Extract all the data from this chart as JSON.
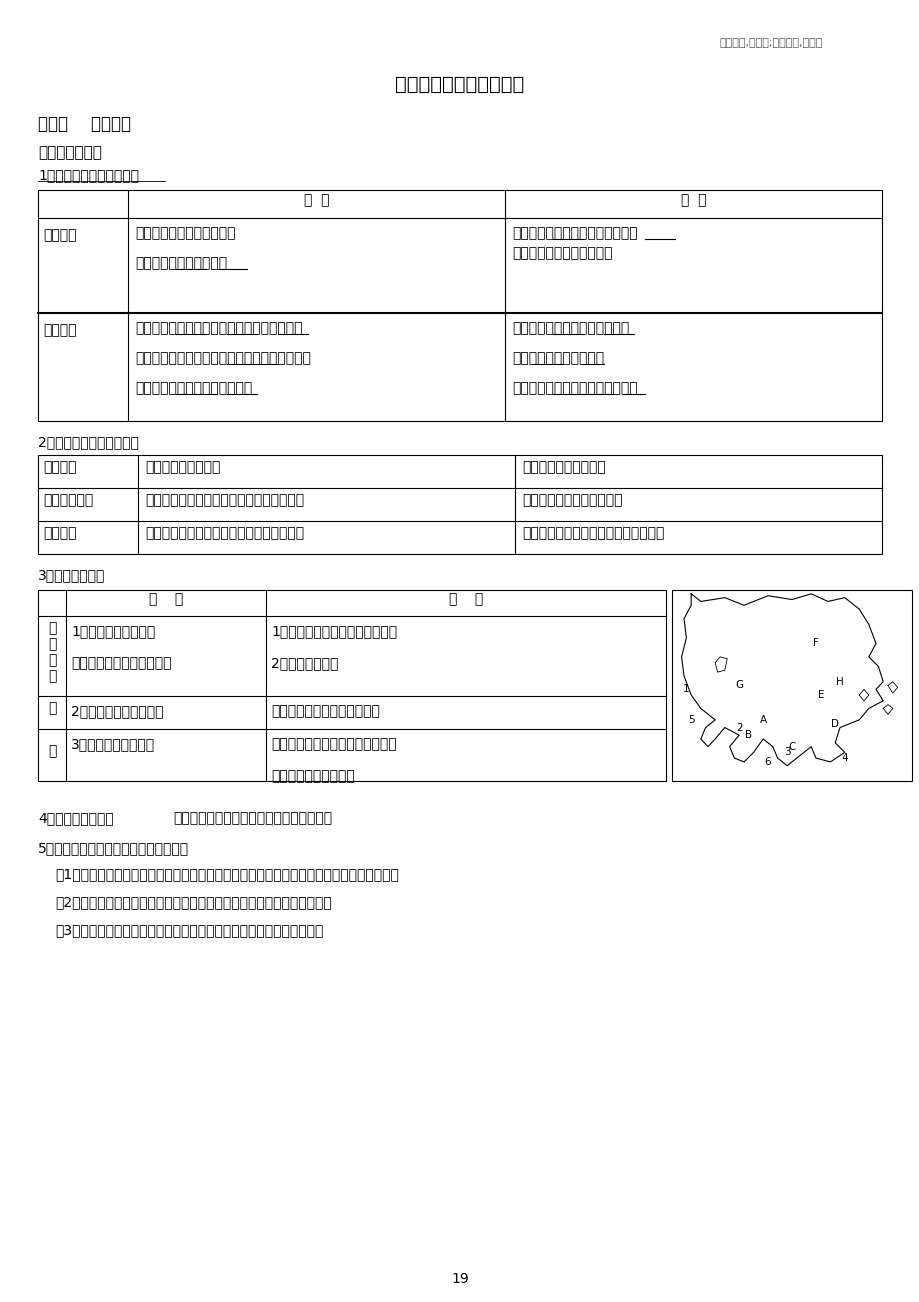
{
  "page_bg": "#ffffff",
  "top_right_text": "业精于勤,荒于嬉;行成于思,毁于随",
  "main_title": "初一下册地理知识点总结",
  "chapter_title": "第一章    认识大洲",
  "section1": "一、亚洲及欧洲",
  "subsection1": "1、亚洲、欧洲的地理位置",
  "subsection2": "2、亚洲、欧洲的地形特征",
  "subsection3": "3、亚洲气候特征",
  "table2_rows": [
    [
      "地势特征",
      "地势中部高，四周低",
      "地势南北高，中间低。"
    ],
    [
      "主要地形类型",
      "以高原、山地为主，平均海拔仅次于南极洲",
      "以平原为主，平均海拔最低"
    ],
    [
      "地形分布",
      "高原山地分布在中部，平原分布在大陆周围",
      "山地分布在南北两侧，平原分布在中部"
    ]
  ],
  "section4_label": "4、欧洲气候特点：",
  "section4_text": "温带海洋性气候和地中海气候分布最典型。",
  "section5_label": "5、欧洲温带海洋性气候分布广泛原因：",
  "reasons": [
    "（1）从纬度位置看：位于北温带，受来自大西洋温暖湿润的西风影响和北大西洋暖流作用。",
    "（2）从海陆位置看：西临大西洋，大陆轮廓破碎，海洋影响可深入内陆；",
    "（3）从地形看：阿尔卑斯山脉东西走向，对海洋气流深入起引导作用。"
  ],
  "page_number": "19"
}
